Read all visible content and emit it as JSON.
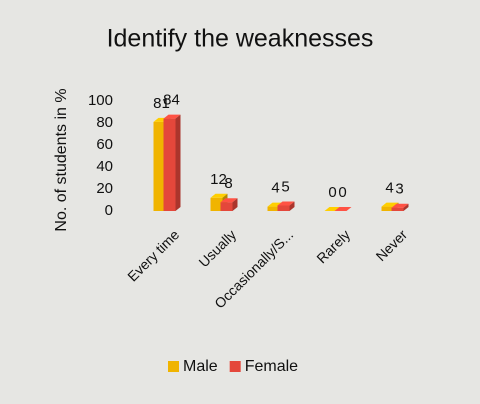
{
  "chart_data": {
    "type": "bar",
    "title": "Identify the weaknesses",
    "y_label": "No. of students in %",
    "categories": [
      "Every time",
      "Usually",
      "Occasionally/S...",
      "Rarely",
      "Never"
    ],
    "series": [
      {
        "name": "Male",
        "color": "#f0b400",
        "values": [
          81,
          12,
          4,
          0,
          4
        ]
      },
      {
        "name": "Female",
        "color": "#e4473b",
        "values": [
          84,
          8,
          5,
          0,
          3
        ]
      }
    ],
    "ylim": [
      0,
      100
    ],
    "yticks": [
      0,
      20,
      40,
      60,
      80,
      100
    ],
    "grid": false,
    "legend": "bottom"
  }
}
